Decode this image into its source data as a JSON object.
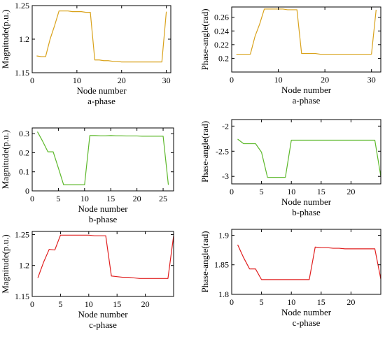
{
  "chart_data": [
    {
      "type": "line",
      "title": "",
      "xlabel": "Node number",
      "ylabel": "Magnitude(p.u.)",
      "caption": "a-phase",
      "color": "#d9a21b",
      "xlim": [
        0,
        31
      ],
      "ylim": [
        1.15,
        1.25
      ],
      "xticks": [
        0,
        10,
        20,
        30
      ],
      "yticks": [
        1.15,
        1.2,
        1.25
      ],
      "series": [
        {
          "x": [
            1,
            2,
            3,
            4,
            5,
            6,
            7,
            8,
            9,
            10,
            11,
            12,
            13,
            14,
            15,
            16,
            17,
            18,
            19,
            20,
            21,
            22,
            23,
            24,
            25,
            26,
            27,
            28,
            29,
            30
          ],
          "y": [
            1.175,
            1.174,
            1.174,
            1.2,
            1.22,
            1.242,
            1.242,
            1.242,
            1.241,
            1.241,
            1.241,
            1.24,
            1.24,
            1.169,
            1.169,
            1.168,
            1.168,
            1.167,
            1.167,
            1.166,
            1.166,
            1.166,
            1.166,
            1.166,
            1.166,
            1.166,
            1.166,
            1.166,
            1.166,
            1.241
          ]
        }
      ]
    },
    {
      "type": "line",
      "title": "",
      "xlabel": "Node number",
      "ylabel": "Phase-angle(rad)",
      "caption": "a-phase",
      "color": "#d9a21b",
      "xlim": [
        0,
        32
      ],
      "ylim": [
        0.18,
        0.275
      ],
      "xticks": [
        0,
        10,
        20,
        30
      ],
      "yticks": [
        0.2,
        0.22,
        0.24,
        0.26
      ],
      "series": [
        {
          "x": [
            1,
            2,
            3,
            4,
            5,
            6,
            7,
            8,
            9,
            10,
            11,
            12,
            13,
            14,
            15,
            16,
            17,
            18,
            19,
            20,
            21,
            22,
            23,
            24,
            25,
            26,
            27,
            28,
            29,
            30,
            31
          ],
          "y": [
            0.206,
            0.206,
            0.206,
            0.206,
            0.232,
            0.25,
            0.272,
            0.272,
            0.272,
            0.272,
            0.272,
            0.271,
            0.271,
            0.271,
            0.207,
            0.207,
            0.207,
            0.207,
            0.206,
            0.206,
            0.206,
            0.206,
            0.206,
            0.206,
            0.206,
            0.206,
            0.206,
            0.206,
            0.206,
            0.206,
            0.271
          ]
        }
      ]
    },
    {
      "type": "line",
      "title": "",
      "xlabel": "Node number",
      "ylabel": "Magnitude(p.u.)",
      "caption": "b-phase",
      "color": "#5cb82a",
      "xlim": [
        0,
        27
      ],
      "ylim": [
        0,
        0.33
      ],
      "xticks": [
        0,
        5,
        10,
        15,
        20,
        25
      ],
      "yticks": [
        0,
        0.1,
        0.2,
        0.3
      ],
      "series": [
        {
          "x": [
            1,
            2,
            3,
            4,
            5,
            6,
            7,
            8,
            9,
            10,
            11,
            12,
            13,
            14,
            15,
            16,
            17,
            18,
            19,
            20,
            21,
            22,
            23,
            24,
            25,
            26
          ],
          "y": [
            0.31,
            0.26,
            0.205,
            0.205,
            0.12,
            0.032,
            0.032,
            0.032,
            0.032,
            0.032,
            0.29,
            0.29,
            0.289,
            0.289,
            0.29,
            0.289,
            0.289,
            0.288,
            0.288,
            0.288,
            0.287,
            0.287,
            0.287,
            0.287,
            0.287,
            0.032
          ]
        }
      ]
    },
    {
      "type": "line",
      "title": "",
      "xlabel": "Node number",
      "ylabel": "Phase-angle(rad)",
      "caption": "b-phase",
      "color": "#5cb82a",
      "xlim": [
        0,
        25
      ],
      "ylim": [
        -3.15,
        -1.87
      ],
      "xticks": [
        0,
        5,
        10,
        15,
        20
      ],
      "yticks": [
        -3,
        -2.5,
        -2
      ],
      "series": [
        {
          "x": [
            1,
            2,
            3,
            4,
            5,
            6,
            7,
            8,
            9,
            10,
            11,
            12,
            13,
            14,
            15,
            16,
            17,
            18,
            19,
            20,
            21,
            22,
            23,
            24,
            25
          ],
          "y": [
            -2.26,
            -2.35,
            -2.35,
            -2.35,
            -2.52,
            -3.02,
            -3.02,
            -3.02,
            -3.02,
            -2.28,
            -2.28,
            -2.28,
            -2.28,
            -2.28,
            -2.28,
            -2.28,
            -2.28,
            -2.28,
            -2.28,
            -2.28,
            -2.28,
            -2.28,
            -2.28,
            -2.28,
            -3.0
          ]
        }
      ]
    },
    {
      "type": "line",
      "title": "",
      "xlabel": "Node number",
      "ylabel": "Magnitude(p.u.)",
      "caption": "c-phase",
      "color": "#e01e1e",
      "xlim": [
        0,
        25
      ],
      "ylim": [
        1.15,
        1.255
      ],
      "xticks": [
        0,
        5,
        10,
        15,
        20
      ],
      "yticks": [
        1.15,
        1.2,
        1.25
      ],
      "series": [
        {
          "x": [
            1,
            2,
            3,
            4,
            5,
            6,
            7,
            8,
            9,
            10,
            11,
            12,
            13,
            14,
            15,
            16,
            17,
            18,
            19,
            20,
            21,
            22,
            23,
            24,
            25
          ],
          "y": [
            1.18,
            1.205,
            1.226,
            1.225,
            1.249,
            1.249,
            1.249,
            1.249,
            1.249,
            1.249,
            1.248,
            1.248,
            1.248,
            1.183,
            1.182,
            1.181,
            1.181,
            1.18,
            1.179,
            1.179,
            1.179,
            1.179,
            1.179,
            1.179,
            1.248
          ]
        }
      ]
    },
    {
      "type": "line",
      "title": "",
      "xlabel": "Node number",
      "ylabel": "Phase-angle(rad)",
      "caption": "c-phase",
      "color": "#e01e1e",
      "xlim": [
        0,
        25
      ],
      "ylim": [
        1.8,
        1.91
      ],
      "xticks": [
        0,
        5,
        10,
        15,
        20
      ],
      "yticks": [
        1.8,
        1.85,
        1.9
      ],
      "series": [
        {
          "x": [
            1,
            2,
            3,
            4,
            5,
            6,
            7,
            8,
            9,
            10,
            11,
            12,
            13,
            14,
            15,
            16,
            17,
            18,
            19,
            20,
            21,
            22,
            23,
            24,
            25
          ],
          "y": [
            1.884,
            1.862,
            1.843,
            1.843,
            1.825,
            1.825,
            1.825,
            1.825,
            1.825,
            1.825,
            1.825,
            1.825,
            1.825,
            1.88,
            1.879,
            1.879,
            1.878,
            1.878,
            1.877,
            1.877,
            1.877,
            1.877,
            1.877,
            1.877,
            1.826
          ]
        }
      ]
    }
  ]
}
